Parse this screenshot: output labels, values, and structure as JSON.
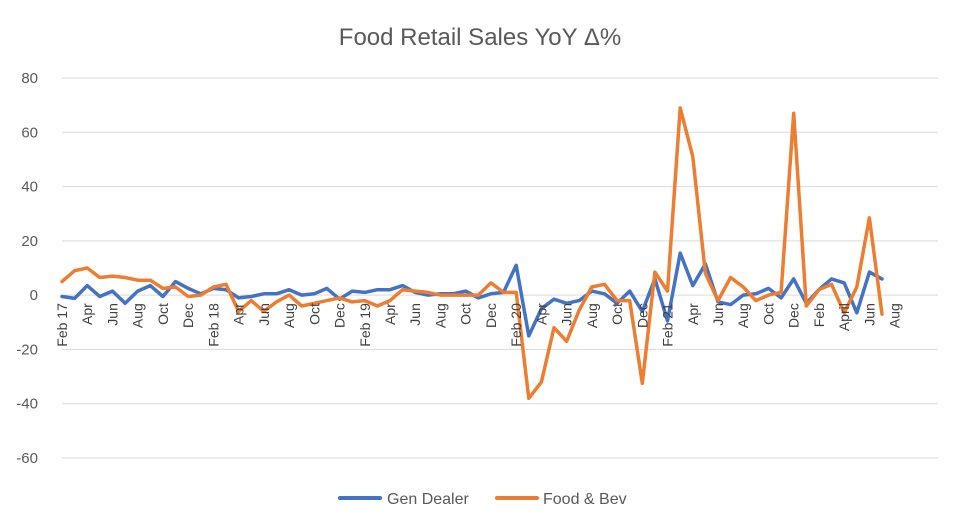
{
  "chart_data": {
    "type": "line",
    "title": "Food Retail Sales YoY Δ%",
    "xlabel": "",
    "ylabel": "",
    "ylim": [
      -60,
      80
    ],
    "yticks": [
      -60,
      -40,
      -20,
      0,
      20,
      40,
      60,
      80
    ],
    "grid": true,
    "legend_position": "bottom",
    "tick_labels": [
      {
        "index": 0,
        "label": "Feb 17"
      },
      {
        "index": 2,
        "label": "Apr"
      },
      {
        "index": 4,
        "label": "Jun"
      },
      {
        "index": 6,
        "label": "Aug"
      },
      {
        "index": 8,
        "label": "Oct"
      },
      {
        "index": 10,
        "label": "Dec"
      },
      {
        "index": 12,
        "label": "Feb 18"
      },
      {
        "index": 14,
        "label": "Apr"
      },
      {
        "index": 16,
        "label": "Jun"
      },
      {
        "index": 18,
        "label": "Aug"
      },
      {
        "index": 20,
        "label": "Oct"
      },
      {
        "index": 22,
        "label": "Dec"
      },
      {
        "index": 24,
        "label": "Feb 19"
      },
      {
        "index": 26,
        "label": "Apr"
      },
      {
        "index": 28,
        "label": "Jun"
      },
      {
        "index": 30,
        "label": "Aug"
      },
      {
        "index": 32,
        "label": "Oct"
      },
      {
        "index": 34,
        "label": "Dec"
      },
      {
        "index": 36,
        "label": "Feb 20"
      },
      {
        "index": 38,
        "label": "Apr"
      },
      {
        "index": 40,
        "label": "Jun"
      },
      {
        "index": 42,
        "label": "Aug"
      },
      {
        "index": 44,
        "label": "Oct"
      },
      {
        "index": 46,
        "label": "Dec"
      },
      {
        "index": 48,
        "label": "Feb 21"
      },
      {
        "index": 50,
        "label": "Apr"
      },
      {
        "index": 52,
        "label": "Jun"
      },
      {
        "index": 54,
        "label": "Aug"
      },
      {
        "index": 56,
        "label": "Oct"
      },
      {
        "index": 58,
        "label": "Dec"
      },
      {
        "index": 60,
        "label": "Feb"
      },
      {
        "index": 62,
        "label": "April"
      },
      {
        "index": 64,
        "label": "Jun"
      },
      {
        "index": 66,
        "label": "Aug"
      }
    ],
    "series": [
      {
        "name": "Gen Dealer",
        "color": "#4472C4",
        "values": [
          -0.5,
          -1.2,
          3.5,
          -0.5,
          1.5,
          -3,
          1.5,
          3.5,
          -0.5,
          5,
          2.5,
          0.5,
          2.5,
          2,
          -1,
          -0.5,
          0.5,
          0.5,
          2,
          0,
          0.5,
          2.5,
          -1.5,
          1.5,
          1,
          2,
          2,
          3.5,
          1,
          0,
          0.5,
          0.5,
          1.5,
          -1,
          0.5,
          1,
          11,
          -15,
          -5,
          -1.5,
          -3,
          -2,
          1.5,
          0.5,
          -3,
          1.5,
          -6,
          6,
          -9.5,
          15.5,
          3.5,
          11.5,
          -2.5,
          -3.5,
          0,
          0.5,
          2.5,
          -1,
          6,
          -3,
          2,
          6,
          4.5,
          -6.5,
          8.5,
          6
        ]
      },
      {
        "name": "Food & Bev",
        "color": "#ED7D31",
        "values": [
          5,
          9,
          10,
          6.5,
          7,
          6.5,
          5.5,
          5.5,
          2.5,
          3,
          -0.5,
          0,
          3,
          4,
          -6,
          -2,
          -6,
          -2.5,
          0,
          -4,
          -3,
          -2,
          -1,
          -2.5,
          -2,
          -4,
          -2,
          2,
          1.5,
          1,
          0,
          0,
          0,
          0,
          4.5,
          1,
          1,
          -38,
          -32,
          -12,
          -17,
          -5.5,
          3,
          4,
          -2,
          -2,
          -32.5,
          8.5,
          1.5,
          69,
          51,
          8,
          -2,
          6.5,
          3,
          -2,
          0,
          1,
          67,
          -4,
          2,
          4,
          -6.5,
          3,
          28.5,
          -7
        ]
      }
    ]
  }
}
